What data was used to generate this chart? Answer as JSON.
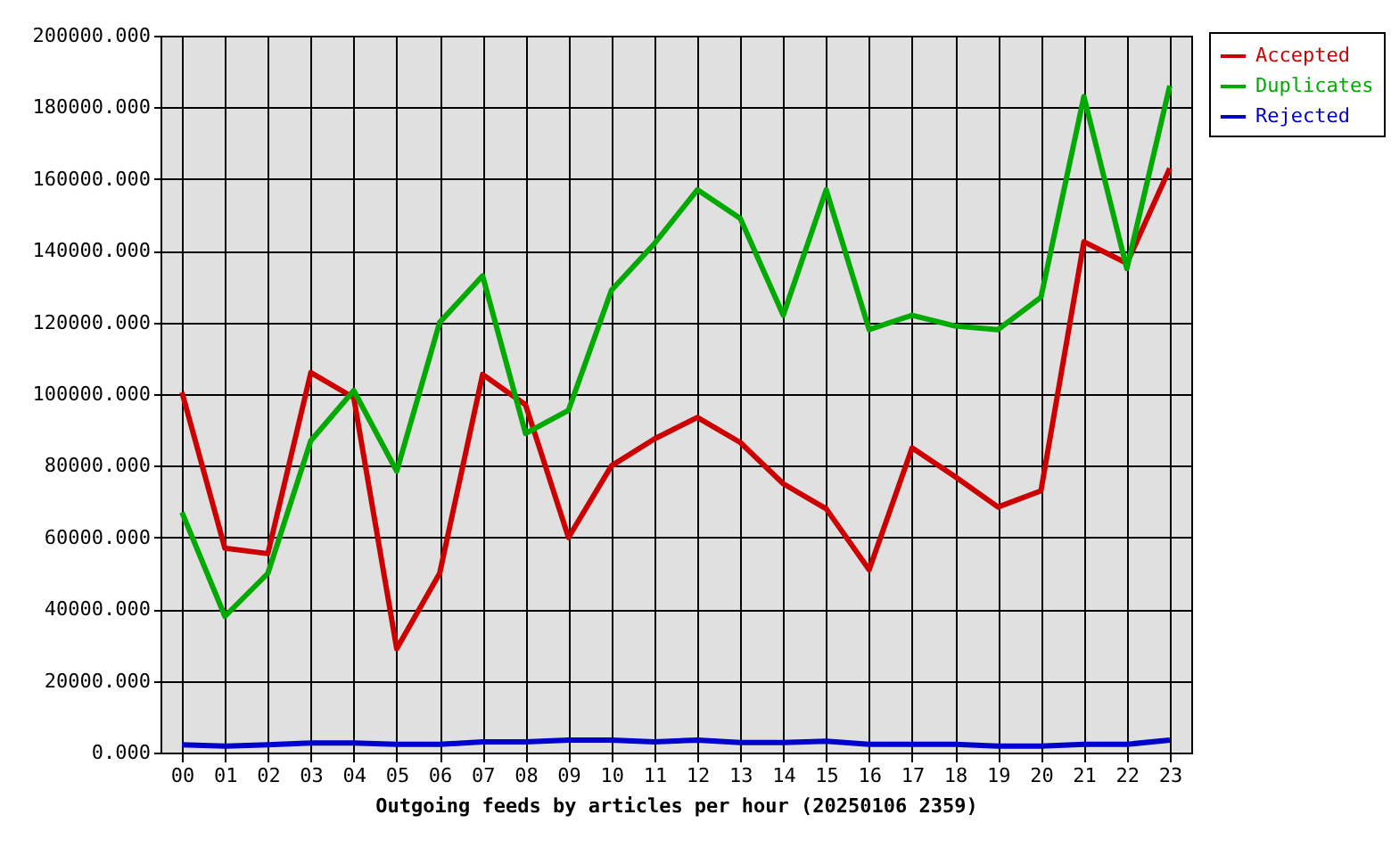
{
  "chart_data": {
    "type": "line",
    "xlabel": "Outgoing feeds by articles per hour (20250106 2359)",
    "categories": [
      "00",
      "01",
      "02",
      "03",
      "04",
      "05",
      "06",
      "07",
      "08",
      "09",
      "10",
      "11",
      "12",
      "13",
      "14",
      "15",
      "16",
      "17",
      "18",
      "19",
      "20",
      "21",
      "22",
      "23"
    ],
    "series": [
      {
        "name": "Accepted",
        "color": "#cc0000",
        "values": [
          100500,
          57000,
          55500,
          106000,
          99000,
          29000,
          50000,
          105500,
          97000,
          60000,
          80000,
          87500,
          93500,
          86500,
          75000,
          68000,
          51000,
          85000,
          77000,
          68500,
          73000,
          142500,
          136500,
          163000
        ]
      },
      {
        "name": "Duplicates",
        "color": "#00aa00",
        "values": [
          67000,
          38000,
          50000,
          87000,
          101000,
          78500,
          120000,
          133000,
          89000,
          95500,
          129000,
          142000,
          157000,
          149000,
          122000,
          157000,
          118000,
          122000,
          119000,
          118000,
          127000,
          183000,
          135000,
          186000
        ]
      },
      {
        "name": "Rejected",
        "color": "#0000cc",
        "values": [
          2200,
          1800,
          2200,
          2700,
          2700,
          2300,
          2300,
          3000,
          3000,
          3500,
          3500,
          3000,
          3500,
          2800,
          2800,
          3200,
          2300,
          2300,
          2300,
          1800,
          1800,
          2300,
          2300,
          3500
        ]
      }
    ],
    "ylim": [
      0,
      200000
    ],
    "yticks": [
      {
        "value": 0,
        "label": "0.000"
      },
      {
        "value": 20000,
        "label": "20000.000"
      },
      {
        "value": 40000,
        "label": "40000.000"
      },
      {
        "value": 60000,
        "label": "60000.000"
      },
      {
        "value": 80000,
        "label": "80000.000"
      },
      {
        "value": 100000,
        "label": "100000.000"
      },
      {
        "value": 120000,
        "label": "120000.000"
      },
      {
        "value": 140000,
        "label": "140000.000"
      },
      {
        "value": 160000,
        "label": "160000.000"
      },
      {
        "value": 180000,
        "label": "180000.000"
      },
      {
        "value": 200000,
        "label": "200000.000"
      }
    ],
    "grid": true,
    "legend": "top right"
  }
}
